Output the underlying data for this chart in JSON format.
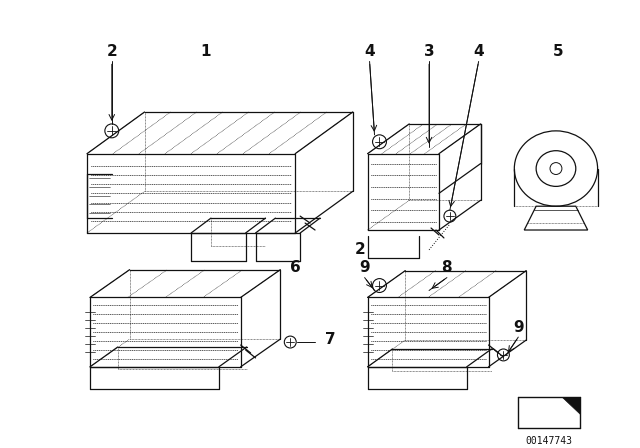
{
  "background_color": "#ffffff",
  "part_number": "00147743",
  "line_color": "#111111",
  "lw_main": 0.9,
  "lw_detail": 0.5,
  "lw_dot": 0.4,
  "fig_width": 6.4,
  "fig_height": 4.48,
  "label_fontsize": 11,
  "pn_fontsize": 7
}
